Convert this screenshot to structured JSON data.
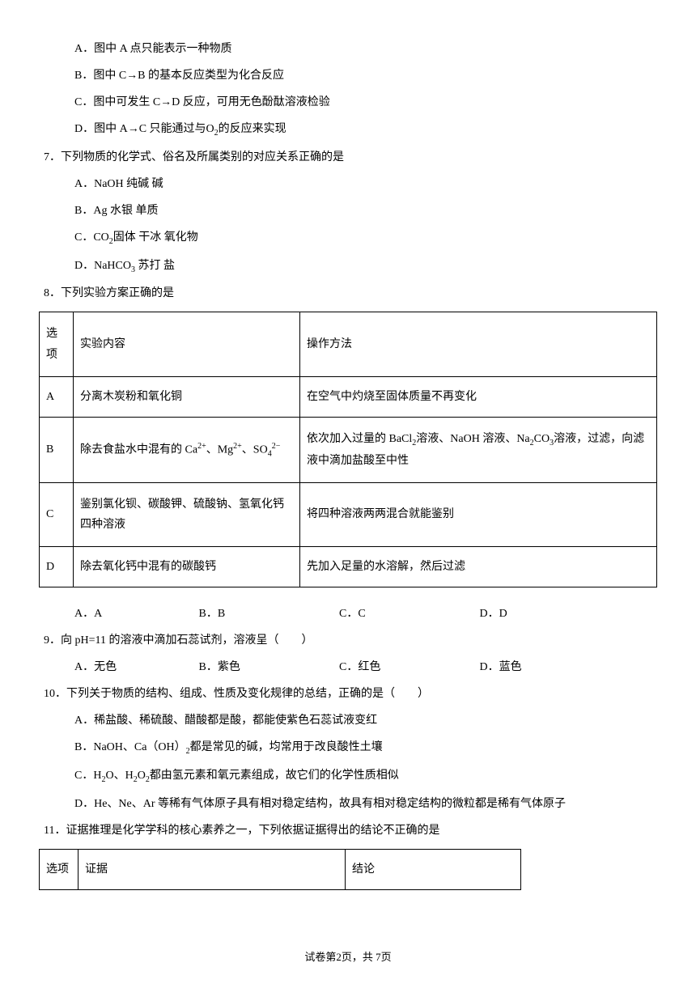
{
  "q6": {
    "optA": "A．图中 A 点只能表示一种物质",
    "optB": "B．图中 C→B 的基本反应类型为化合反应",
    "optC": "C．图中可发生 C→D 反应，可用无色酚酞溶液检验",
    "optD_pre": "D．图中 A→C 只能通过与O",
    "optD_sub": "2",
    "optD_post": "的反应来实现"
  },
  "q7": {
    "stem": "7．下列物质的化学式、俗名及所属类别的对应关系正确的是",
    "optA": "A．NaOH  纯碱  碱",
    "optB": "B．Ag  水银  单质",
    "optC_pre": "C．CO",
    "optC_sub": "2",
    "optC_post": "固体  干冰  氧化物",
    "optD_pre": "D．NaHCO",
    "optD_sub": "3",
    "optD_post": "  苏打  盐"
  },
  "q8": {
    "stem": "8．下列实验方案正确的是",
    "header": {
      "col1": "选项",
      "col2": "实验内容",
      "col3": "操作方法"
    },
    "rows": [
      {
        "opt": "A",
        "content": "分离木炭粉和氧化铜",
        "method": "在空气中灼烧至固体质量不再变化"
      },
      {
        "opt": "B",
        "content_html": "除去食盐水中混有的 Ca<span class=\"sup\">2+</span>、Mg<span class=\"sup\">2+</span>、SO<span class=\"sub\">4</span><span class=\"sup\">2−</span>",
        "method_html": "依次加入过量的 BaCl<span class=\"sub\">2</span>溶液、NaOH 溶液、Na<span class=\"sub\">2</span>CO<span class=\"sub\">3</span>溶液，过滤，向滤液中滴加盐酸至中性"
      },
      {
        "opt": "C",
        "content": "鉴别氯化钡、碳酸钾、硫酸钠、氢氧化钙四种溶液",
        "method": "将四种溶液两两混合就能鉴别"
      },
      {
        "opt": "D",
        "content": "除去氧化钙中混有的碳酸钙",
        "method": "先加入足量的水溶解，然后过滤"
      }
    ],
    "answers": {
      "a": "A．A",
      "b": "B．B",
      "c": "C．C",
      "d": "D．D"
    }
  },
  "q9": {
    "stem": "9．向 pH=11 的溶液中滴加石蕊试剂，溶液呈（　　）",
    "a": "A．无色",
    "b": "B．紫色",
    "c": "C．红色",
    "d": "D．蓝色"
  },
  "q10": {
    "stem": "10．下列关于物质的结构、组成、性质及变化规律的总结，正确的是（　　）",
    "optA": "A．稀盐酸、稀硫酸、醋酸都是酸，都能使紫色石蕊试液变红",
    "optB_pre": "B．NaOH、Ca（OH）",
    "optB_sub": "2",
    "optB_post": "都是常见的碱，均常用于改良酸性土壤",
    "optC_pre": "C．H",
    "optC_s1": "2",
    "optC_mid": "O、H",
    "optC_s2": "2",
    "optC_mid2": "O",
    "optC_s3": "2",
    "optC_post": "都由氢元素和氧元素组成，故它们的化学性质相似",
    "optD": "D．He、Ne、Ar 等稀有气体原子具有相对稳定结构，故具有相对稳定结构的微粒都是稀有气体原子"
  },
  "q11": {
    "stem": "11．证据推理是化学学科的核心素养之一，下列依据证据得出的结论不正确的是",
    "header": {
      "col1": "选项",
      "col2": "证据",
      "col3": "结论"
    }
  },
  "footer": "试卷第2页，共 7页"
}
